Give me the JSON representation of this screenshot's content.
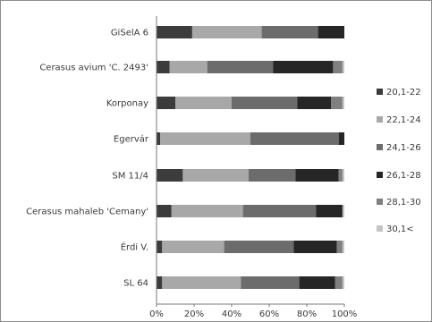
{
  "chart_data": {
    "type": "bar",
    "orientation": "horizontal",
    "stacked": "percent",
    "categories": [
      "GiSelA 6",
      "Cerasus avium 'C. 2493'",
      "Korponay",
      "Egervár",
      "SM 11/4",
      "Cerasus mahaleb 'Cemany'",
      "Érdi V.",
      "SL 64"
    ],
    "series": [
      {
        "name": "20,1-22",
        "color": "#3c3c3c",
        "values": [
          19,
          7,
          10,
          2,
          14,
          8,
          3,
          3
        ]
      },
      {
        "name": "22,1-24",
        "color": "#a8a8a8",
        "values": [
          37,
          20,
          30,
          48,
          35,
          38,
          33,
          42
        ]
      },
      {
        "name": "24,1-26",
        "color": "#6c6c6c",
        "values": [
          30,
          35,
          35,
          47,
          25,
          39,
          37,
          31
        ]
      },
      {
        "name": "26,1-28",
        "color": "#262626",
        "values": [
          14,
          32,
          18,
          3,
          23,
          14,
          23,
          19
        ]
      },
      {
        "name": "28,1-30",
        "color": "#808080",
        "values": [
          0,
          5,
          6,
          0,
          2,
          0,
          3,
          4
        ]
      },
      {
        "name": "30,1<",
        "color": "#c4c4c4",
        "values": [
          0,
          1,
          1,
          0,
          1,
          1,
          1,
          1
        ]
      }
    ],
    "xlim": [
      0,
      100
    ],
    "xticks": [
      "0%",
      "20%",
      "40%",
      "60%",
      "80%",
      "100%"
    ],
    "grid": false,
    "legend_position": "right",
    "title": "",
    "xlabel": "",
    "ylabel": ""
  }
}
